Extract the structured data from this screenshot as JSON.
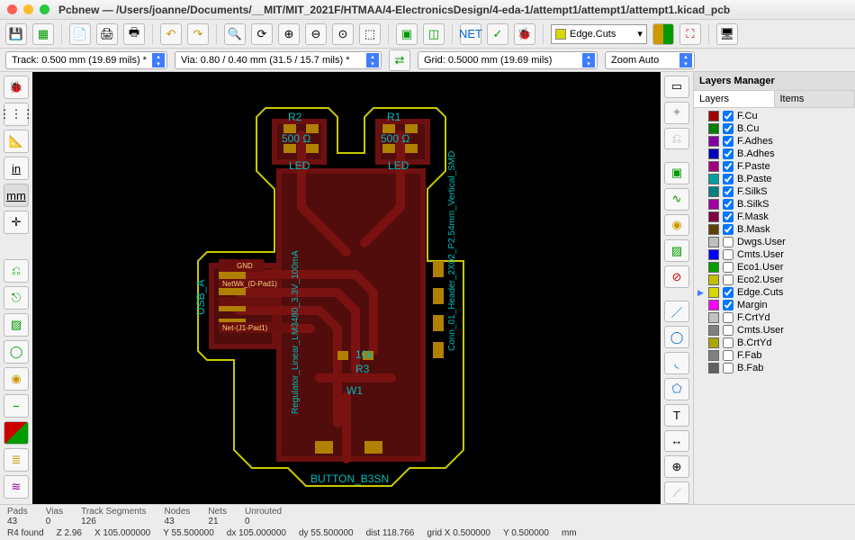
{
  "window": {
    "app": "Pcbnew",
    "path": "/Users/joanne/Documents/__MIT/MIT_2021F/HTMAA/4-ElectronicsDesign/4-eda-1/attempt1/attempt1/attempt1.kicad_pcb"
  },
  "toolbar": {
    "layer_selected": "Edge.Cuts"
  },
  "options": {
    "track": "Track: 0.500 mm (19.69 mils) *",
    "via": "Via: 0.80 / 0.40 mm (31.5 / 15.7 mils) *",
    "grid": "Grid: 0.5000 mm (19.69 mils)",
    "zoom": "Zoom Auto"
  },
  "layers_panel": {
    "title": "Layers Manager",
    "tabs": [
      "Layers",
      "Items"
    ],
    "active_tab": 0,
    "layers": [
      {
        "color": "#a00000",
        "name": "F.Cu",
        "checked": true,
        "current": false
      },
      {
        "color": "#008000",
        "name": "B.Cu",
        "checked": true,
        "current": false
      },
      {
        "color": "#8000a0",
        "name": "F.Adhes",
        "checked": true,
        "current": false
      },
      {
        "color": "#0000c0",
        "name": "B.Adhes",
        "checked": true,
        "current": false
      },
      {
        "color": "#a00080",
        "name": "F.Paste",
        "checked": true,
        "current": false
      },
      {
        "color": "#00a0a0",
        "name": "B.Paste",
        "checked": true,
        "current": false
      },
      {
        "color": "#008080",
        "name": "F.SilkS",
        "checked": true,
        "current": false
      },
      {
        "color": "#a000a0",
        "name": "B.SilkS",
        "checked": true,
        "current": false
      },
      {
        "color": "#800040",
        "name": "F.Mask",
        "checked": true,
        "current": false
      },
      {
        "color": "#604000",
        "name": "B.Mask",
        "checked": true,
        "current": false
      },
      {
        "color": "#c0c0c0",
        "name": "Dwgs.User",
        "checked": false,
        "current": false
      },
      {
        "color": "#0000ff",
        "name": "Cmts.User",
        "checked": false,
        "current": false
      },
      {
        "color": "#00a000",
        "name": "Eco1.User",
        "checked": false,
        "current": false
      },
      {
        "color": "#c0c000",
        "name": "Eco2.User",
        "checked": false,
        "current": false
      },
      {
        "color": "#d8d800",
        "name": "Edge.Cuts",
        "checked": true,
        "current": true
      },
      {
        "color": "#ff00ff",
        "name": "Margin",
        "checked": true,
        "current": false
      },
      {
        "color": "#c0c0c0",
        "name": "F.CrtYd",
        "checked": false,
        "current": false
      },
      {
        "color": "#808080",
        "name": "Cmts.User",
        "checked": false,
        "current": false
      },
      {
        "color": "#a8a800",
        "name": "B.CrtYd",
        "checked": false,
        "current": false
      },
      {
        "color": "#808080",
        "name": "F.Fab",
        "checked": false,
        "current": false
      },
      {
        "color": "#606060",
        "name": "B.Fab",
        "checked": false,
        "current": false
      }
    ]
  },
  "status": {
    "row1": [
      {
        "label": "Pads",
        "value": "43"
      },
      {
        "label": "Vias",
        "value": "0"
      },
      {
        "label": "Track Segments",
        "value": "126"
      },
      {
        "label": "Nodes",
        "value": "43"
      },
      {
        "label": "Nets",
        "value": "21"
      },
      {
        "label": "Unrouted",
        "value": "0"
      }
    ],
    "row2": [
      "R4 found",
      "Z 2.96",
      "X 105.000000",
      "Y 55.500000",
      "dx 105.000000",
      "dy 55.500000",
      "dist 118.766",
      "grid X 0.500000",
      "Y 0.500000",
      "mm"
    ]
  },
  "pcb": {
    "bg": "#000000",
    "copper": "#7a1212",
    "copper_dark": "#4a0c0c",
    "silk": "#009999",
    "edge": "#c8c800",
    "pad": "#b08000",
    "labels": {
      "r1": "R1",
      "r2": "R2",
      "r3": "R3",
      "led1": "LED",
      "led2": "LED",
      "usb": "USB_A",
      "reg": "Regulator_Linear_LM3480_3.3V_100mA",
      "header": "Conn_01_Header_2X02_P2.54mm_Vertical_SMD",
      "button": "BUTTON_B3SN",
      "gnd": "GND",
      "val500_1": "500 Ω",
      "val500_2": "500 Ω",
      "val10k": "10k",
      "w1": "W1",
      "net": "Net-(J1-Pad1)",
      "netwk": "NetWk_(D-Pad1)"
    }
  }
}
